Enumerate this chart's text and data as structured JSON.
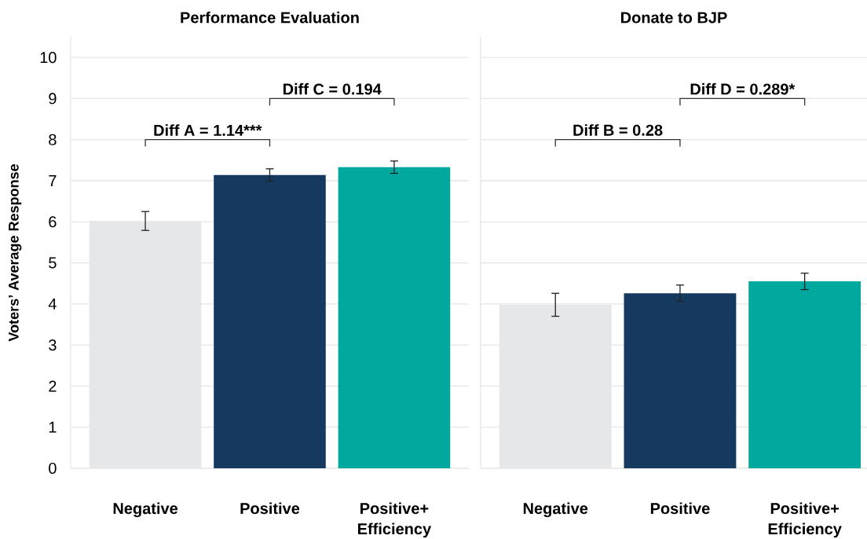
{
  "chart_data": [
    {
      "type": "bar",
      "title": "Performance Evaluation",
      "ylabel": "Voters’ Average Response",
      "categories": [
        "Negative",
        "Positive",
        "Positive+ Efficiency"
      ],
      "values": [
        6.02,
        7.14,
        7.33
      ],
      "colors": [
        "#e6e7e8",
        "#163a5f",
        "#00a89d"
      ],
      "errors": [
        0.23,
        0.15,
        0.15
      ],
      "ylim": [
        0,
        10.5
      ],
      "yticks": [
        0,
        1,
        2,
        3,
        4,
        5,
        6,
        7,
        8,
        9,
        10
      ],
      "grid": "y",
      "annotations": [
        "Diff A = 1.14***",
        "Diff C = 0.194"
      ]
    },
    {
      "type": "bar",
      "title": "Donate to BJP",
      "categories": [
        "Negative",
        "Positive",
        "Positive+ Efficiency"
      ],
      "values": [
        3.98,
        4.26,
        4.55
      ],
      "colors": [
        "#e6e7e8",
        "#163a5f",
        "#00a89d"
      ],
      "errors": [
        0.28,
        0.2,
        0.2
      ],
      "ylim": [
        0,
        10.5
      ],
      "yticks": [
        0,
        1,
        2,
        3,
        4,
        5,
        6,
        7,
        8,
        9,
        10
      ],
      "grid": "y",
      "tick_labels": "x",
      "annotations": [
        "Diff B = 0.28",
        "Diff D = 0.289*"
      ]
    }
  ]
}
